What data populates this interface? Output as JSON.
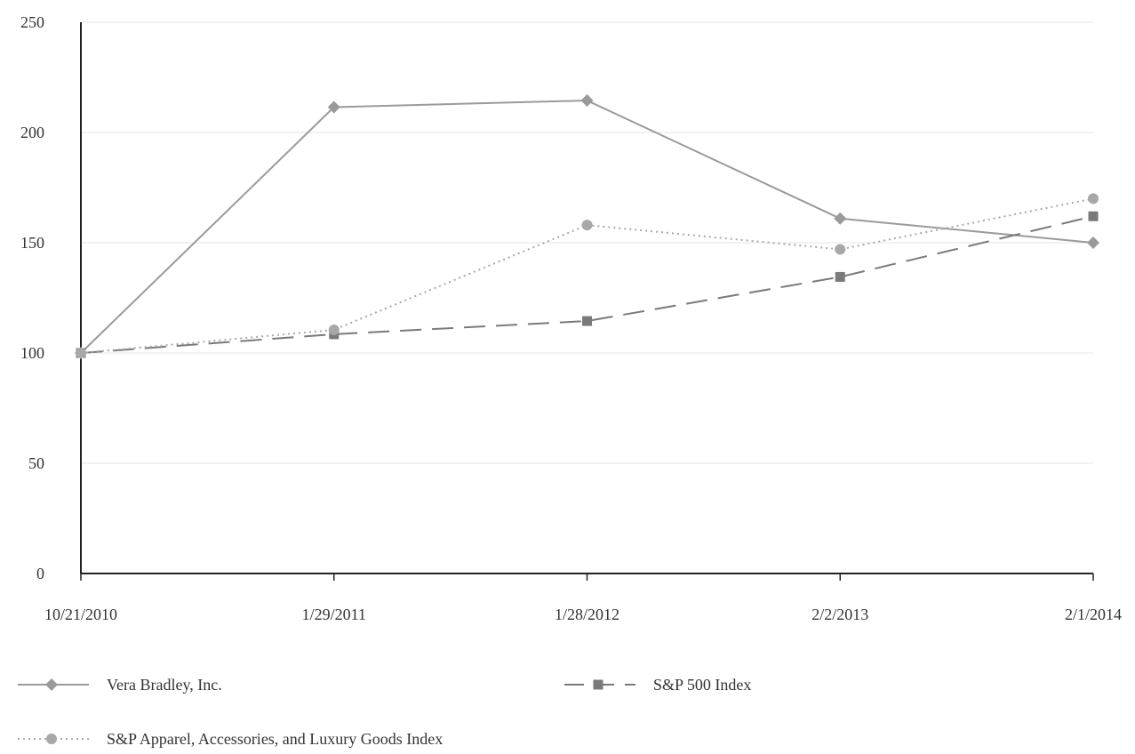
{
  "chart_data": {
    "type": "line",
    "title": "",
    "xlabel": "",
    "ylabel": "",
    "categories": [
      "10/21/2010",
      "1/29/2011",
      "1/28/2012",
      "2/2/2013",
      "2/1/2014"
    ],
    "ylim": [
      0,
      250
    ],
    "y_ticks": [
      "0",
      "50",
      "100",
      "150",
      "200",
      "250"
    ],
    "grid": "horizontal",
    "legend_position": "bottom",
    "series": [
      {
        "name": "Vera Bradley, Inc.",
        "values": [
          100,
          211.5,
          214.5,
          161,
          150
        ],
        "marker": "diamond",
        "line_style": "solid",
        "color": "#9a9a9a"
      },
      {
        "name": "S&P 500 Index",
        "values": [
          100,
          108.5,
          114.5,
          134.5,
          162
        ],
        "marker": "square",
        "line_style": "dashed",
        "color": "#7a7a7a"
      },
      {
        "name": "S&P Apparel, Accessories, and Luxury Goods Index",
        "values": [
          100,
          110.5,
          158,
          147,
          170
        ],
        "marker": "circle",
        "line_style": "dotted",
        "color": "#a8a8a8"
      }
    ]
  }
}
